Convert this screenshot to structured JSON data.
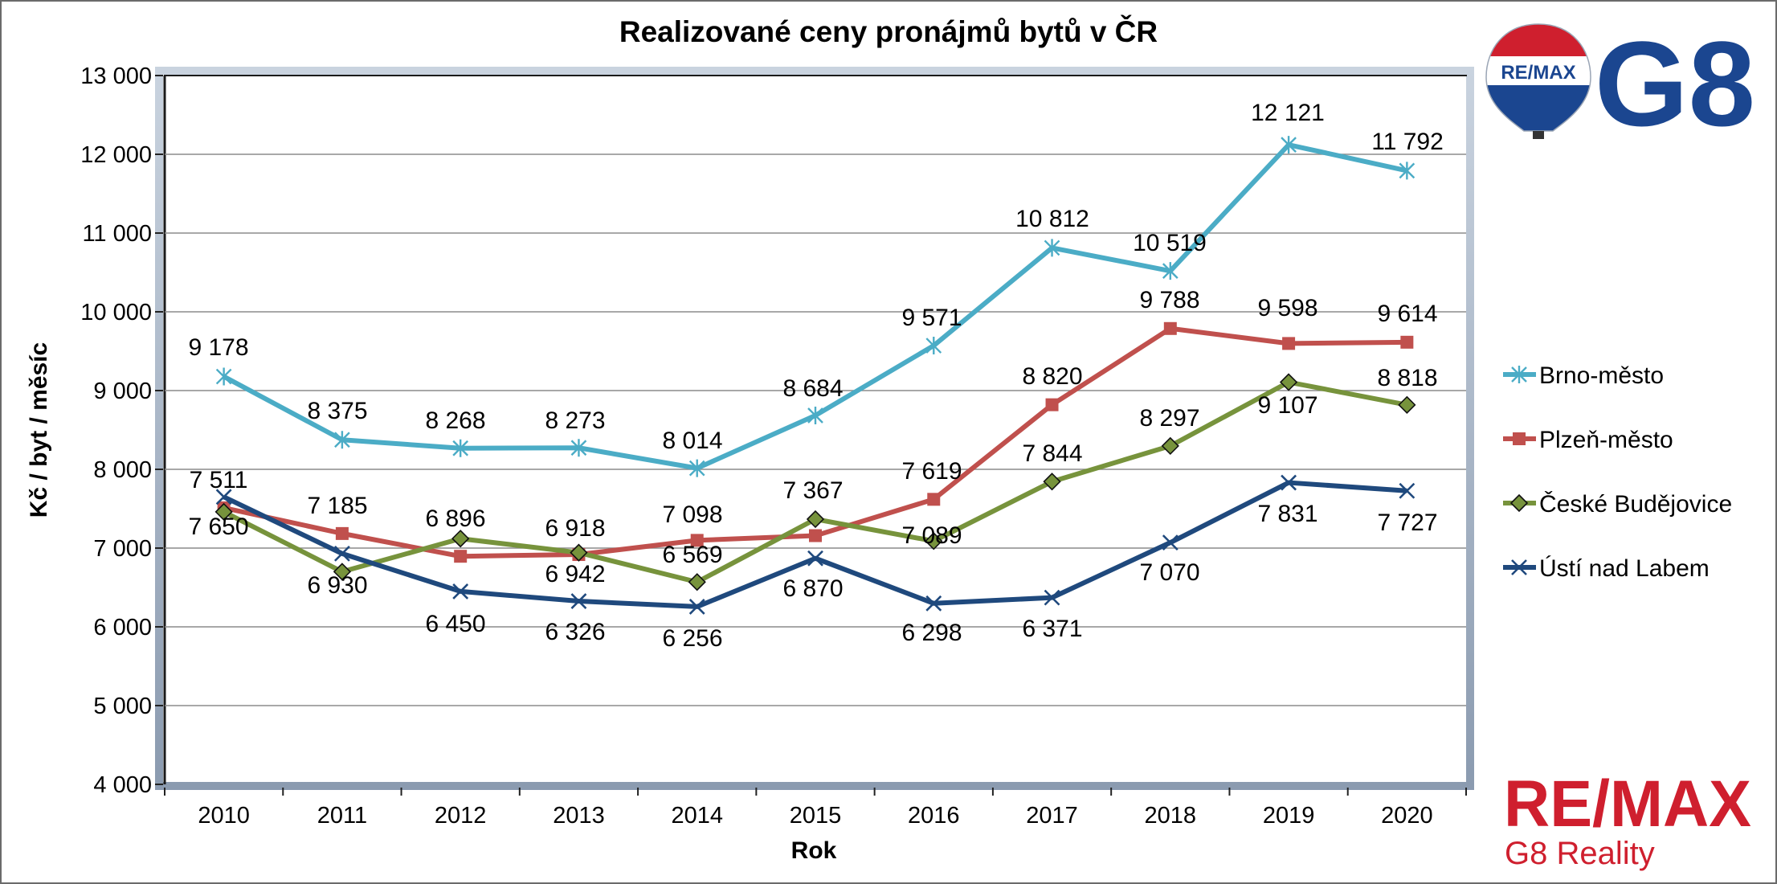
{
  "chart_data": {
    "type": "line",
    "title": "Realizované ceny pronájmů bytů v ČR",
    "xlabel": "Rok",
    "ylabel": "Kč / byt / měsíc",
    "categories": [
      "2010",
      "2011",
      "2012",
      "2013",
      "2014",
      "2015",
      "2016",
      "2017",
      "2018",
      "2019",
      "2020"
    ],
    "ylim": [
      4000,
      13000
    ],
    "yticks": [
      4000,
      5000,
      6000,
      7000,
      8000,
      9000,
      10000,
      11000,
      12000,
      13000
    ],
    "ytick_labels": [
      "4 000",
      "5 000",
      "6 000",
      "7 000",
      "8 000",
      "9 000",
      "10 000",
      "11 000",
      "12 000",
      "13 000"
    ],
    "grid": true,
    "legend_position": "right",
    "series": [
      {
        "name": "Brno-město",
        "color": "#4bacc6",
        "marker": "asterisk",
        "values": [
          9178,
          8375,
          8268,
          8273,
          8014,
          8684,
          9571,
          10812,
          10519,
          12121,
          11792
        ],
        "labels": [
          "9 178",
          "8 375",
          "8 268",
          "8 273",
          "8 014",
          "8 684",
          "9 571",
          "10 812",
          "10 519",
          "12 121",
          "11 792"
        ]
      },
      {
        "name": "Plzeň-město",
        "color": "#c0504d",
        "marker": "square",
        "values": [
          7511,
          7185,
          6896,
          6918,
          7098,
          7158,
          7619,
          8820,
          9788,
          9598,
          9614
        ],
        "labels": [
          "7 511",
          "7 185",
          "6 896",
          "6 918",
          "7 098",
          "",
          "7 619",
          "8 820",
          "9 788",
          "9 598",
          "9 614"
        ]
      },
      {
        "name": "České Budějovice",
        "color": "#77933c",
        "marker": "diamond",
        "values": [
          7460,
          6700,
          7120,
          6942,
          6569,
          7367,
          7089,
          7844,
          8297,
          9107,
          8818
        ],
        "labels": [
          "",
          "",
          "",
          "6 942",
          "6 569",
          "7 367",
          "7 089",
          "7 844",
          "8 297",
          "9 107",
          "8 818"
        ]
      },
      {
        "name": "Ústí nad Labem",
        "color": "#1f497d",
        "marker": "x",
        "values": [
          7650,
          6930,
          6450,
          6326,
          6256,
          6870,
          6298,
          6371,
          7070,
          7831,
          7727
        ],
        "labels": [
          "7 650",
          "6 930",
          "6 450",
          "6 326",
          "6 256",
          "6 870",
          "6 298",
          "6 371",
          "7 070",
          "7 831",
          "7 727"
        ]
      }
    ]
  },
  "branding": {
    "top_logo_badge": "RE/MAX",
    "top_logo_text": "G8",
    "bottom_logo_main": "RE/MAX",
    "bottom_logo_sub": "G8 Reality",
    "brand_red": "#cf1f2e",
    "brand_blue": "#1b4690"
  }
}
